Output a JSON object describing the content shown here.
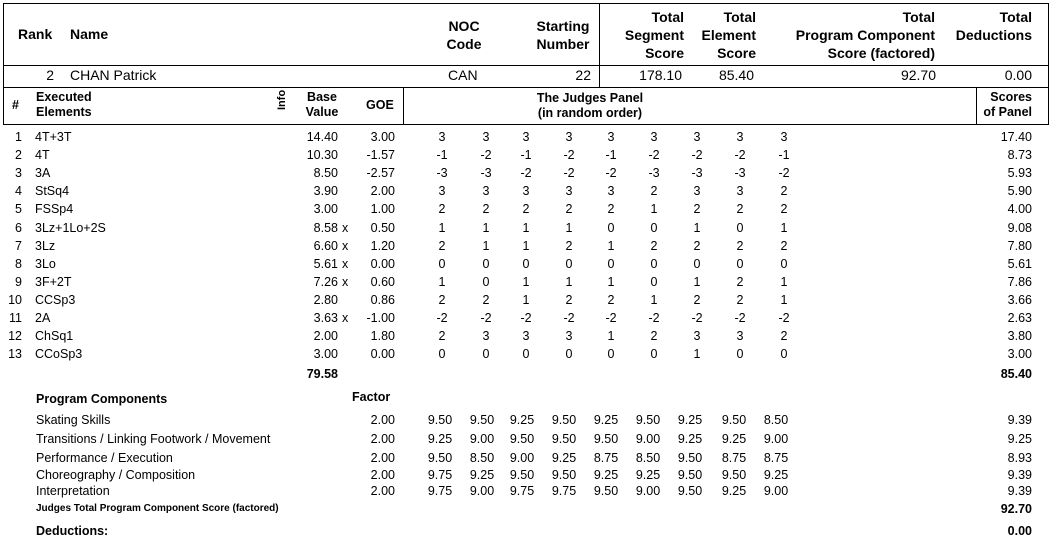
{
  "header": {
    "rank": "Rank",
    "name": "Name",
    "noc_code": [
      "NOC",
      "Code"
    ],
    "starting_number": [
      "Starting",
      "Number"
    ],
    "total_segment_score": [
      "Total",
      "Segment",
      "Score"
    ],
    "total_element_score": [
      "Total",
      "Element",
      "Score"
    ],
    "total_program_component": [
      "Total",
      "Program  Component",
      "Score (factored)"
    ],
    "total_deductions": [
      "Total",
      "Deductions"
    ]
  },
  "skater": {
    "rank": "2",
    "name": "CHAN Patrick",
    "noc": "CAN",
    "starting_number": "22",
    "total_segment_score": "178.10",
    "total_element_score": "85.40",
    "total_program_component": "92.70",
    "total_deductions": "0.00"
  },
  "elements_header": {
    "num": "#",
    "executed": [
      "Executed",
      "Elements"
    ],
    "info": "Info",
    "base_value": [
      "Base",
      "Value"
    ],
    "goe": "GOE",
    "judges_panel": [
      "The Judges Panel",
      "(in random order)"
    ],
    "scores_of_panel": [
      "Scores",
      "of Panel"
    ]
  },
  "elements": [
    {
      "n": "1",
      "el": "4T+3T",
      "bv": "14.40",
      "x": "",
      "goe": "3.00",
      "j": [
        "3",
        "3",
        "3",
        "3",
        "3",
        "3",
        "3",
        "3",
        "3"
      ],
      "score": "17.40"
    },
    {
      "n": "2",
      "el": "4T",
      "bv": "10.30",
      "x": "",
      "goe": "-1.57",
      "j": [
        "-1",
        "-2",
        "-1",
        "-2",
        "-1",
        "-2",
        "-2",
        "-2",
        "-1"
      ],
      "score": "8.73"
    },
    {
      "n": "3",
      "el": "3A",
      "bv": "8.50",
      "x": "",
      "goe": "-2.57",
      "j": [
        "-3",
        "-3",
        "-2",
        "-2",
        "-2",
        "-3",
        "-3",
        "-3",
        "-2"
      ],
      "score": "5.93"
    },
    {
      "n": "4",
      "el": "StSq4",
      "bv": "3.90",
      "x": "",
      "goe": "2.00",
      "j": [
        "3",
        "3",
        "3",
        "3",
        "3",
        "2",
        "3",
        "3",
        "2"
      ],
      "score": "5.90"
    },
    {
      "n": "5",
      "el": "FSSp4",
      "bv": "3.00",
      "x": "",
      "goe": "1.00",
      "j": [
        "2",
        "2",
        "2",
        "2",
        "2",
        "1",
        "2",
        "2",
        "2"
      ],
      "score": "4.00"
    },
    {
      "n": "6",
      "el": "3Lz+1Lo+2S",
      "bv": "8.58",
      "x": "x",
      "goe": "0.50",
      "j": [
        "1",
        "1",
        "1",
        "1",
        "0",
        "0",
        "1",
        "0",
        "1"
      ],
      "score": "9.08"
    },
    {
      "n": "7",
      "el": "3Lz",
      "bv": "6.60",
      "x": "x",
      "goe": "1.20",
      "j": [
        "2",
        "1",
        "1",
        "2",
        "1",
        "2",
        "2",
        "2",
        "2"
      ],
      "score": "7.80"
    },
    {
      "n": "8",
      "el": "3Lo",
      "bv": "5.61",
      "x": "x",
      "goe": "0.00",
      "j": [
        "0",
        "0",
        "0",
        "0",
        "0",
        "0",
        "0",
        "0",
        "0"
      ],
      "score": "5.61"
    },
    {
      "n": "9",
      "el": "3F+2T",
      "bv": "7.26",
      "x": "x",
      "goe": "0.60",
      "j": [
        "1",
        "0",
        "1",
        "1",
        "1",
        "0",
        "1",
        "2",
        "1"
      ],
      "score": "7.86"
    },
    {
      "n": "10",
      "el": "CCSp3",
      "bv": "2.80",
      "x": "",
      "goe": "0.86",
      "j": [
        "2",
        "2",
        "1",
        "2",
        "2",
        "1",
        "2",
        "2",
        "1"
      ],
      "score": "3.66"
    },
    {
      "n": "11",
      "el": "2A",
      "bv": "3.63",
      "x": "x",
      "goe": "-1.00",
      "j": [
        "-2",
        "-2",
        "-2",
        "-2",
        "-2",
        "-2",
        "-2",
        "-2",
        "-2"
      ],
      "score": "2.63"
    },
    {
      "n": "12",
      "el": "ChSq1",
      "bv": "2.00",
      "x": "",
      "goe": "1.80",
      "j": [
        "2",
        "3",
        "3",
        "3",
        "1",
        "2",
        "3",
        "3",
        "2"
      ],
      "score": "3.80"
    },
    {
      "n": "13",
      "el": "CCoSp3",
      "bv": "3.00",
      "x": "",
      "goe": "0.00",
      "j": [
        "0",
        "0",
        "0",
        "0",
        "0",
        "0",
        "1",
        "0",
        "0"
      ],
      "score": "3.00"
    }
  ],
  "elements_total_bv": "79.58",
  "elements_total_score": "85.40",
  "program_components": {
    "title": "Program Components",
    "factor_label": "Factor",
    "items": [
      {
        "name": "Skating Skills",
        "factor": "2.00",
        "j": [
          "9.50",
          "9.50",
          "9.25",
          "9.50",
          "9.25",
          "9.50",
          "9.25",
          "9.50",
          "8.50"
        ],
        "score": "9.39"
      },
      {
        "name": "Transitions / Linking Footwork / Movement",
        "factor": "2.00",
        "j": [
          "9.25",
          "9.00",
          "9.50",
          "9.50",
          "9.50",
          "9.00",
          "9.25",
          "9.25",
          "9.00"
        ],
        "score": "9.25"
      },
      {
        "name": "Performance / Execution",
        "factor": "2.00",
        "j": [
          "9.50",
          "8.50",
          "9.00",
          "9.25",
          "8.75",
          "8.50",
          "9.50",
          "8.75",
          "8.75"
        ],
        "score": "8.93"
      },
      {
        "name": "Choreography / Composition",
        "factor": "2.00",
        "j": [
          "9.75",
          "9.25",
          "9.50",
          "9.50",
          "9.25",
          "9.25",
          "9.50",
          "9.50",
          "9.25"
        ],
        "score": "9.39"
      },
      {
        "name": "Interpretation",
        "factor": "2.00",
        "j": [
          "9.75",
          "9.00",
          "9.75",
          "9.75",
          "9.50",
          "9.00",
          "9.50",
          "9.25",
          "9.00"
        ],
        "score": "9.39"
      }
    ],
    "judges_total_label": "Judges Total Program Component Score (factored)",
    "judges_total": "92.70"
  },
  "deductions": {
    "label": "Deductions:",
    "value": "0.00"
  }
}
